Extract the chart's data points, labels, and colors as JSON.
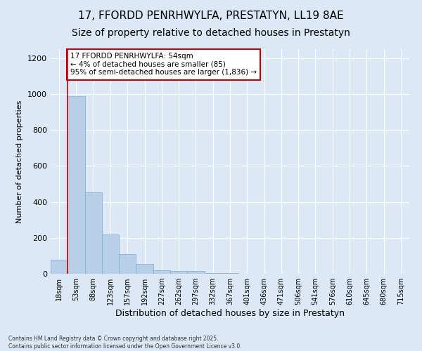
{
  "title": "17, FFORDD PENRHWYLFA, PRESTATYN, LL19 8AE",
  "subtitle": "Size of property relative to detached houses in Prestatyn",
  "xlabel": "Distribution of detached houses by size in Prestatyn",
  "ylabel": "Number of detached properties",
  "bin_labels": [
    "18sqm",
    "53sqm",
    "88sqm",
    "123sqm",
    "157sqm",
    "192sqm",
    "227sqm",
    "262sqm",
    "297sqm",
    "332sqm",
    "367sqm",
    "401sqm",
    "436sqm",
    "471sqm",
    "506sqm",
    "541sqm",
    "576sqm",
    "610sqm",
    "645sqm",
    "680sqm",
    "715sqm"
  ],
  "bar_heights": [
    80,
    990,
    455,
    220,
    110,
    55,
    20,
    15,
    15,
    5,
    2,
    0,
    0,
    0,
    0,
    0,
    0,
    0,
    0,
    0,
    0
  ],
  "bar_color": "#b8cfe8",
  "bar_edge_color": "#7aaed4",
  "vline_color": "#cc0000",
  "vline_x": 0.5,
  "annotation_text": "17 FFORDD PENRHWYLFA: 54sqm\n← 4% of detached houses are smaller (85)\n95% of semi-detached houses are larger (1,836) →",
  "annotation_box_color": "white",
  "annotation_box_edge_color": "#cc0000",
  "ylim": [
    0,
    1250
  ],
  "yticks": [
    0,
    200,
    400,
    600,
    800,
    1000,
    1200
  ],
  "bg_color": "#dce8f5",
  "plot_bg_color": "#dce8f5",
  "footer_text": "Contains HM Land Registry data © Crown copyright and database right 2025.\nContains public sector information licensed under the Open Government Licence v3.0.",
  "title_fontsize": 11,
  "subtitle_fontsize": 10,
  "xlabel_fontsize": 9,
  "ylabel_fontsize": 8,
  "tick_fontsize": 7,
  "annotation_fontsize": 7.5
}
